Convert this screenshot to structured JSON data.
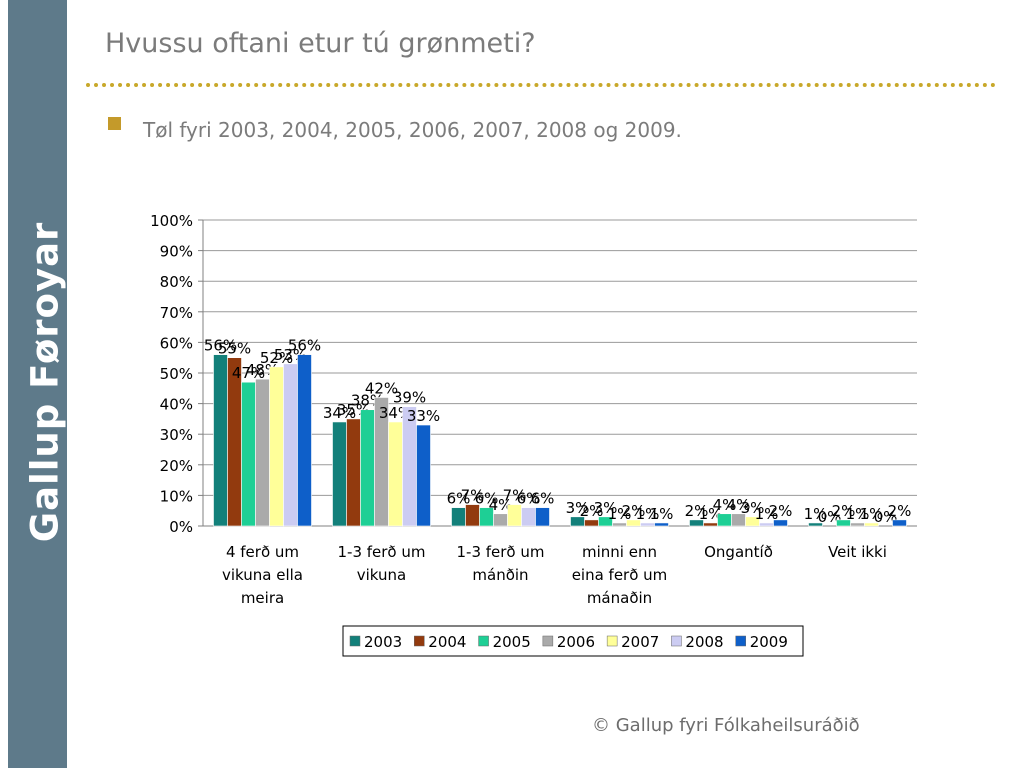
{
  "brand": {
    "text": "Gallup Føroyar",
    "sidebar_color": "#5e7a8a"
  },
  "slide": {
    "title": "Hvussu oftani etur tú grønmeti?",
    "bullet": "Tøl fyri 2003, 2004, 2005, 2006, 2007, 2008 og 2009.",
    "bullet_color": "#c49a2a",
    "divider_color": "#c8a82a"
  },
  "footer": {
    "text": "© Gallup fyri Fólkaheilsuráðið"
  },
  "chart_data": {
    "type": "bar",
    "categories": [
      [
        "4 ferð um",
        "vikuna ella",
        "meira"
      ],
      [
        "1-3 ferð um",
        "vikuna"
      ],
      [
        "1-3 ferð um",
        "mánðin"
      ],
      [
        "minni enn",
        "eina ferð um",
        "mánaðin"
      ],
      [
        "Ongantíð"
      ],
      [
        "Veit ikki"
      ]
    ],
    "series": [
      {
        "name": "2003",
        "color": "#13807a",
        "values": [
          56,
          34,
          6,
          3,
          2,
          1
        ]
      },
      {
        "name": "2004",
        "color": "#923a0e",
        "values": [
          55,
          35,
          7,
          2,
          1,
          0
        ]
      },
      {
        "name": "2005",
        "color": "#1ecf95",
        "values": [
          47,
          38,
          6,
          3,
          4,
          2
        ]
      },
      {
        "name": "2006",
        "color": "#aaaaaa",
        "values": [
          48,
          42,
          4,
          1,
          4,
          1
        ]
      },
      {
        "name": "2007",
        "color": "#ffff99",
        "values": [
          52,
          34,
          7,
          2,
          3,
          1
        ]
      },
      {
        "name": "2008",
        "color": "#ccccf2",
        "values": [
          53,
          39,
          6,
          1,
          1,
          0
        ]
      },
      {
        "name": "2009",
        "color": "#0e5fc9",
        "values": [
          56,
          33,
          6,
          1,
          2,
          2
        ]
      }
    ],
    "ylim": [
      0,
      100
    ],
    "yticks": [
      "0%",
      "10%",
      "20%",
      "30%",
      "40%",
      "50%",
      "60%",
      "70%",
      "80%",
      "90%",
      "100%"
    ],
    "value_suffix": "%",
    "grid": true,
    "legend": "bottom"
  }
}
